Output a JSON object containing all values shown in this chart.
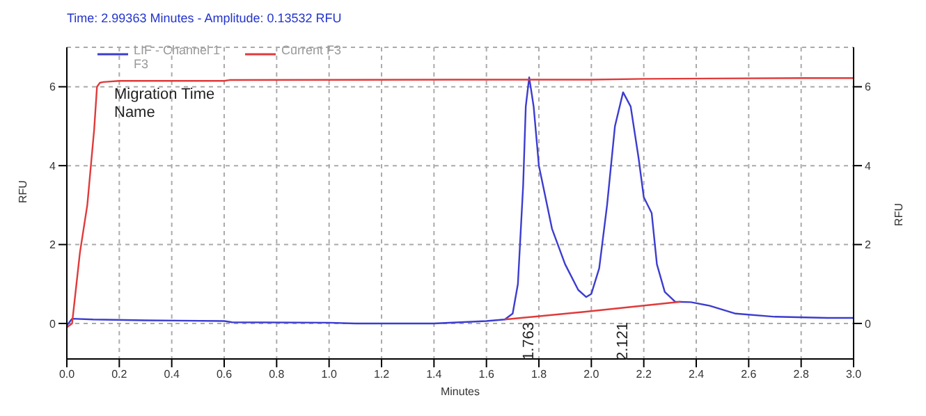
{
  "chart_data": {
    "type": "line",
    "xlabel": "Minutes",
    "ylabel": "RFU",
    "y2label": "RFU",
    "annotations": [
      "Time:  2.99363 Minutes - Amplitude:  0.13532 RFU",
      "Migration Time",
      "Name",
      "1.763",
      "2.121"
    ],
    "xlim": [
      0,
      3
    ],
    "xticks": [
      {
        "value": 0,
        "label": "0.0"
      },
      {
        "value": 0.2,
        "label": "0.2"
      },
      {
        "value": 0.4,
        "label": "0.4"
      },
      {
        "value": 0.6,
        "label": "0.6"
      },
      {
        "value": 0.8,
        "label": "0.8"
      },
      {
        "value": 1,
        "label": "1.0"
      },
      {
        "value": 1.2,
        "label": "1.2"
      },
      {
        "value": 1.4,
        "label": "1.4"
      },
      {
        "value": 1.6,
        "label": "1.6"
      },
      {
        "value": 1.8,
        "label": "1.8"
      },
      {
        "value": 2,
        "label": "2.0"
      },
      {
        "value": 2.2,
        "label": "2.2"
      },
      {
        "value": 2.4,
        "label": "2.4"
      },
      {
        "value": 2.6,
        "label": "2.6"
      },
      {
        "value": 2.8,
        "label": "2.8"
      },
      {
        "value": 3,
        "label": "3.0"
      }
    ],
    "ylim": [
      -0.9,
      7
    ],
    "yticks": [
      0,
      2,
      4,
      6
    ],
    "y2lim": [
      -0.9,
      7
    ],
    "y2ticks": [
      0,
      2,
      4,
      6
    ],
    "grid": true,
    "legend": "top left",
    "marker": "none",
    "line_style": "solid",
    "series": [
      {
        "name": "LIF - Channel 1 F3",
        "color": "#3c3cd0",
        "x": [
          0,
          0.02,
          0.1,
          0.3,
          0.6,
          0.63,
          1.0,
          1.1,
          1.4,
          1.5,
          1.6,
          1.67,
          1.7,
          1.72,
          1.74,
          1.75,
          1.763,
          1.78,
          1.8,
          1.85,
          1.9,
          1.95,
          1.98,
          2.0,
          2.03,
          2.06,
          2.09,
          2.121,
          2.15,
          2.18,
          2.2,
          2.23,
          2.25,
          2.28,
          2.32,
          2.38,
          2.45,
          2.55,
          2.7,
          2.9,
          3.0
        ],
        "values": [
          -0.05,
          0.12,
          0.1,
          0.08,
          0.06,
          0.03,
          0.02,
          0,
          0,
          0.03,
          0.06,
          0.1,
          0.25,
          1.0,
          3.5,
          5.5,
          6.24,
          5.5,
          4.0,
          2.4,
          1.5,
          0.85,
          0.67,
          0.75,
          1.4,
          3.0,
          5.0,
          5.86,
          5.5,
          4.2,
          3.2,
          2.8,
          1.5,
          0.8,
          0.55,
          0.54,
          0.45,
          0.25,
          0.17,
          0.14,
          0.14
        ]
      },
      {
        "name": "Current F3",
        "color": "#e03a3a",
        "x": [
          0,
          0.02,
          0.05,
          0.078,
          0.104,
          0.115,
          0.126,
          0.14,
          0.2,
          0.6,
          0.62,
          1.5,
          2.0,
          2.2,
          2.8,
          3.0
        ],
        "values": [
          -0.1,
          0,
          1.8,
          3.0,
          4.9,
          6.0,
          6.1,
          6.12,
          6.15,
          6.15,
          6.17,
          6.18,
          6.18,
          6.2,
          6.22,
          6.22
        ]
      },
      {
        "color": "#e03a3a",
        "x": [
          1.67,
          1.98,
          2.34
        ],
        "values": [
          0.1,
          0.3,
          0.55
        ]
      }
    ]
  }
}
